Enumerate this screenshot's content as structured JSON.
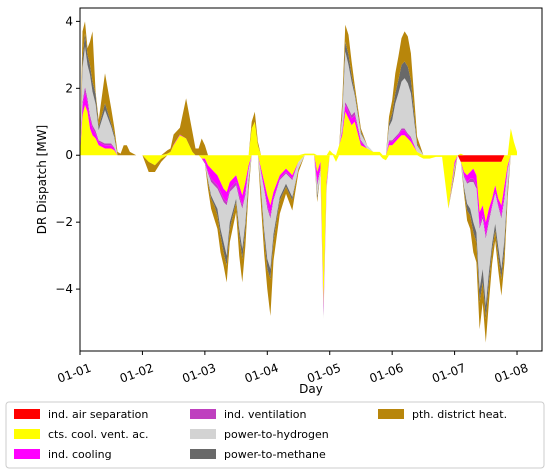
{
  "chart_data": {
    "type": "area",
    "stacking": "stacked, positive and negative",
    "xlabel": "Day",
    "ylabel": "DR Dispatch [MW]",
    "xlim": [
      0,
      7.4
    ],
    "ylim": [
      -5.85,
      4.4
    ],
    "x_ticks": [
      {
        "x": 0,
        "label": "01-01"
      },
      {
        "x": 1,
        "label": "01-02"
      },
      {
        "x": 2,
        "label": "01-03"
      },
      {
        "x": 3,
        "label": "01-04"
      },
      {
        "x": 4,
        "label": "01-05"
      },
      {
        "x": 5,
        "label": "01-06"
      },
      {
        "x": 6,
        "label": "01-07"
      },
      {
        "x": 7,
        "label": "01-08"
      }
    ],
    "y_ticks": [
      -4,
      -2,
      0,
      2,
      4
    ],
    "grid": false,
    "legend_position": "below the plot, 3 columns",
    "x": [
      0.0,
      0.04,
      0.08,
      0.12,
      0.16,
      0.2,
      0.25,
      0.3,
      0.4,
      0.5,
      0.55,
      0.6,
      0.65,
      0.7,
      0.75,
      0.8,
      0.9,
      1.0,
      1.1,
      1.2,
      1.3,
      1.4,
      1.45,
      1.5,
      1.6,
      1.7,
      1.8,
      1.85,
      1.9,
      1.95,
      2.0,
      2.05,
      2.1,
      2.15,
      2.2,
      2.25,
      2.3,
      2.35,
      2.4,
      2.5,
      2.55,
      2.6,
      2.65,
      2.7,
      2.75,
      2.8,
      2.85,
      2.9,
      2.95,
      3.0,
      3.05,
      3.1,
      3.2,
      3.3,
      3.4,
      3.5,
      3.6,
      3.7,
      3.75,
      3.8,
      3.85,
      3.9,
      3.95,
      4.0,
      4.05,
      4.1,
      4.15,
      4.2,
      4.25,
      4.3,
      4.35,
      4.4,
      4.5,
      4.6,
      4.7,
      4.8,
      4.85,
      4.9,
      4.95,
      5.0,
      5.05,
      5.1,
      5.15,
      5.2,
      5.25,
      5.3,
      5.4,
      5.5,
      5.6,
      5.7,
      5.8,
      5.9,
      6.0,
      6.05,
      6.1,
      6.15,
      6.2,
      6.25,
      6.3,
      6.35,
      6.4,
      6.45,
      6.5,
      6.55,
      6.6,
      6.65,
      6.7,
      6.75,
      6.8,
      6.85,
      6.9,
      6.95,
      7.0
    ],
    "series": [
      {
        "name": "ind. air separation",
        "color": "#ff0000",
        "values": [
          0,
          0,
          0,
          0,
          0,
          0,
          0,
          0,
          0,
          0,
          0,
          0,
          0,
          0,
          0,
          0,
          0,
          0,
          0,
          0,
          0,
          0,
          0,
          0,
          0,
          0,
          0,
          0,
          0,
          0,
          0,
          0,
          0,
          0,
          0,
          0,
          0,
          0,
          0,
          0,
          0,
          0,
          0,
          0,
          0,
          0,
          0,
          0,
          0,
          0,
          0,
          0,
          0,
          0,
          0,
          0,
          0,
          0,
          0,
          0,
          0,
          0,
          0,
          0,
          0,
          0,
          0,
          0,
          0,
          0,
          0,
          0,
          0,
          0,
          0,
          0,
          0,
          0,
          0,
          0,
          0,
          0,
          0,
          0,
          0,
          0,
          0,
          0,
          0,
          0,
          0,
          0,
          0,
          0,
          -0.2,
          -0.2,
          -0.2,
          -0.2,
          -0.2,
          -0.2,
          -0.2,
          -0.2,
          -0.2,
          -0.2,
          -0.2,
          -0.2,
          -0.2,
          -0.2,
          0,
          0,
          0,
          0,
          0
        ]
      },
      {
        "name": "cts. cool. vent. ac.",
        "color": "#ffff00",
        "values": [
          0.05,
          1.2,
          1.5,
          1.3,
          0.8,
          0.6,
          0.5,
          0.3,
          0.2,
          0.2,
          0.15,
          0,
          0,
          0,
          0,
          0,
          0,
          0,
          -0.2,
          -0.3,
          -0.1,
          0.05,
          0.1,
          0.3,
          0.6,
          0.5,
          0.1,
          0,
          0,
          -0.1,
          -0.1,
          -0.3,
          -0.4,
          -0.5,
          -0.6,
          -0.8,
          -1.0,
          -1.1,
          -0.8,
          -0.6,
          -0.9,
          -1.2,
          -0.8,
          -0.3,
          0.8,
          1.0,
          0.3,
          -0.4,
          -0.8,
          -1.2,
          -1.5,
          -1.1,
          -0.6,
          -0.4,
          -0.6,
          -0.2,
          0.05,
          0.05,
          0.05,
          -0.5,
          -0.2,
          -4.5,
          -0.8,
          0.15,
          0.05,
          -0.2,
          0.3,
          0.6,
          1.3,
          1.1,
          0.9,
          1.0,
          0.3,
          0.2,
          0.1,
          0.1,
          -0.1,
          -0.15,
          0.3,
          0.3,
          0.4,
          0.5,
          0.6,
          0.6,
          0.5,
          0.4,
          0.1,
          -0.1,
          -0.1,
          -0.05,
          -0.05,
          -1.6,
          -0.2,
          0,
          0.05,
          -0.3,
          -0.4,
          -0.3,
          -0.2,
          -0.4,
          -1.5,
          -1.3,
          -1.8,
          -1.4,
          -1.1,
          -0.7,
          -1.1,
          -1.3,
          -0.9,
          -0.3,
          0.8,
          0.4,
          0.1
        ]
      },
      {
        "name": "ind. cooling",
        "color": "#ff00ff",
        "values": [
          0,
          0.3,
          0.4,
          0.3,
          0.3,
          0.2,
          0.15,
          0.1,
          0.1,
          0.1,
          0.05,
          0,
          0,
          0,
          0,
          0,
          0,
          0,
          0,
          0,
          0,
          0,
          0,
          0.02,
          0.02,
          0,
          0,
          0,
          0,
          0,
          -0.1,
          -0.2,
          -0.3,
          -0.3,
          -0.3,
          -0.3,
          -0.3,
          -0.3,
          -0.2,
          -0.2,
          -0.3,
          -0.3,
          -0.3,
          -0.1,
          0,
          0,
          0,
          -0.1,
          -0.2,
          -0.3,
          -0.3,
          -0.2,
          -0.1,
          -0.1,
          -0.1,
          0,
          0,
          0,
          0,
          -0.3,
          -0.2,
          -0.1,
          -0.1,
          0,
          0,
          0,
          0,
          0.1,
          0.2,
          0.2,
          0.2,
          0.2,
          0.1,
          0,
          0,
          0,
          0,
          0,
          0.1,
          0.1,
          0.1,
          0.1,
          0.15,
          0.15,
          0.1,
          0.1,
          0,
          0,
          0,
          0,
          0,
          0,
          -0.1,
          0,
          0,
          -0.1,
          -0.2,
          -0.2,
          -0.3,
          -0.3,
          -0.4,
          -0.3,
          -0.4,
          -0.3,
          -0.2,
          -0.2,
          -0.2,
          -0.3,
          -0.3,
          -0.1,
          0,
          0,
          0
        ]
      },
      {
        "name": "ind. ventilation",
        "color": "#bf40bf",
        "values": [
          0,
          0.1,
          0.15,
          0.1,
          0.1,
          0.1,
          0.08,
          0.05,
          0.05,
          0.05,
          0.03,
          0,
          0,
          0,
          0,
          0,
          0,
          0,
          0,
          0,
          0,
          0,
          0,
          0,
          0,
          0,
          0,
          0,
          0,
          0,
          -0.05,
          -0.05,
          -0.1,
          -0.1,
          -0.1,
          -0.1,
          -0.1,
          -0.1,
          -0.1,
          -0.1,
          -0.1,
          -0.1,
          -0.1,
          -0.05,
          0,
          0,
          0,
          -0.05,
          -0.05,
          -0.1,
          -0.1,
          -0.05,
          -0.05,
          -0.05,
          -0.05,
          0,
          0,
          0,
          0,
          -0.1,
          -0.05,
          -0.2,
          -0.05,
          0,
          0,
          0,
          0,
          0.05,
          0.1,
          0.1,
          0.1,
          0.1,
          0.05,
          0,
          0,
          0,
          0,
          0,
          0.05,
          0.05,
          0.05,
          0.05,
          0.05,
          0.05,
          0.05,
          0.05,
          0,
          0,
          0,
          0,
          0,
          0,
          -0.05,
          0,
          0,
          -0.05,
          -0.05,
          -0.1,
          -0.1,
          -0.1,
          -0.1,
          -0.1,
          -0.1,
          -0.1,
          -0.05,
          -0.05,
          -0.05,
          -0.1,
          -0.1,
          -0.05,
          0,
          0,
          0
        ]
      },
      {
        "name": "power-to-hydrogen",
        "color": "#d3d3d3",
        "values": [
          0,
          1.0,
          1.2,
          1.0,
          1.2,
          1.0,
          0.8,
          0.3,
          1.0,
          0.5,
          0.3,
          0,
          0,
          0,
          0,
          0,
          0,
          0,
          0,
          0,
          0,
          0,
          0,
          0,
          0,
          0,
          0,
          0,
          0,
          0,
          0,
          -0.2,
          -0.4,
          -0.5,
          -0.6,
          -1.0,
          -1.2,
          -1.5,
          -0.9,
          -0.4,
          -0.9,
          -1.2,
          -0.8,
          -0.3,
          0,
          0,
          0,
          -0.5,
          -1.2,
          -1.5,
          -1.5,
          -1.0,
          -0.5,
          -0.3,
          -0.5,
          -0.2,
          0,
          0,
          0,
          -0.3,
          -0.1,
          -0.1,
          -0.1,
          0,
          0,
          0,
          0,
          0.4,
          1.5,
          1.3,
          1.0,
          0.5,
          0.2,
          0.1,
          0,
          0,
          0,
          0,
          0.4,
          0.6,
          1.0,
          1.2,
          1.4,
          1.5,
          1.5,
          1.3,
          0.2,
          0,
          0,
          0,
          0,
          0,
          -0.1,
          0,
          0,
          -0.3,
          -0.6,
          -0.8,
          -1.2,
          -1.3,
          -1.8,
          -1.5,
          -2.0,
          -1.5,
          -1.1,
          -0.9,
          -1.2,
          -1.5,
          -1.2,
          -0.5,
          0,
          0,
          0
        ]
      },
      {
        "name": "power-to-methane",
        "color": "#696969",
        "values": [
          0,
          0.3,
          0.4,
          0.3,
          0.3,
          0.3,
          0.3,
          0.1,
          0.2,
          0.1,
          0.1,
          0,
          0,
          0,
          0,
          0,
          0,
          0,
          0,
          0,
          0,
          0,
          0,
          0,
          0,
          0,
          0,
          0,
          0,
          0,
          0,
          -0.05,
          -0.1,
          -0.1,
          -0.2,
          -0.2,
          -0.3,
          -0.3,
          -0.2,
          -0.1,
          -0.2,
          -0.3,
          -0.2,
          -0.1,
          0,
          0,
          0,
          -0.1,
          -0.2,
          -0.3,
          -0.3,
          -0.2,
          -0.1,
          -0.1,
          -0.1,
          0,
          0,
          0,
          0,
          -0.1,
          0,
          0,
          0,
          0,
          0,
          0,
          0,
          0.1,
          0.3,
          0.3,
          0.2,
          0.1,
          0.05,
          0,
          0,
          0,
          0,
          0,
          0.1,
          0.2,
          0.3,
          0.4,
          0.5,
          0.5,
          0.5,
          0.4,
          0.05,
          0,
          0,
          0,
          0,
          0,
          -0.05,
          0,
          0,
          -0.1,
          -0.2,
          -0.2,
          -0.3,
          -0.3,
          -0.4,
          -0.4,
          -0.4,
          -0.3,
          -0.2,
          -0.2,
          -0.3,
          -0.3,
          -0.3,
          -0.1,
          0,
          0,
          0
        ]
      },
      {
        "name": "pth. district heat.",
        "color": "#b8860b",
        "values": [
          0,
          0.8,
          0.35,
          0.2,
          0.7,
          1.5,
          0.05,
          0.2,
          0.9,
          0.45,
          0.2,
          0.1,
          0.05,
          0.3,
          0.3,
          0.1,
          0,
          0,
          -0.3,
          -0.2,
          -0.1,
          0.1,
          0.1,
          0.3,
          0.2,
          1.2,
          0.6,
          0.2,
          0.2,
          0.5,
          0.3,
          -0.2,
          -0.3,
          -0.4,
          -0.4,
          -0.5,
          -0.4,
          -0.5,
          -0.4,
          -0.3,
          -0.6,
          -0.7,
          -0.5,
          -0.2,
          0.2,
          0.3,
          0.1,
          -0.4,
          -0.5,
          -0.6,
          -1.1,
          -0.6,
          -0.4,
          -0.2,
          -0.3,
          -0.1,
          0,
          0,
          0,
          -0.1,
          0,
          0,
          0,
          0,
          0,
          0,
          0,
          0.3,
          0.5,
          0.6,
          0.4,
          0.2,
          0.1,
          0,
          0,
          0,
          0,
          0,
          0.2,
          0.4,
          0.6,
          0.7,
          0.8,
          0.9,
          0.9,
          0.8,
          0.2,
          0,
          0,
          0,
          0,
          0,
          -0.1,
          0,
          0,
          -0.1,
          -0.3,
          -0.4,
          -0.6,
          -0.6,
          -0.8,
          -0.6,
          -0.7,
          -0.6,
          -0.4,
          -0.3,
          -0.4,
          -0.5,
          -0.4,
          -0.2,
          0,
          0,
          0
        ]
      }
    ]
  }
}
